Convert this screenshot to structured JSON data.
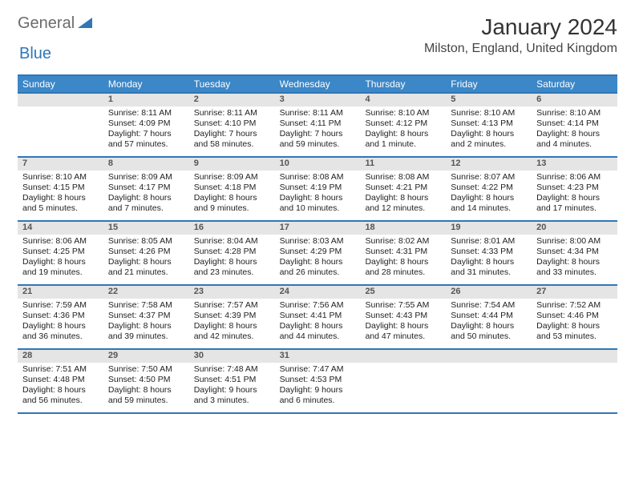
{
  "brand": {
    "word1": "General",
    "word2": "Blue",
    "text_color": "#6b6b6b",
    "accent_color": "#2f77b8"
  },
  "title": "January 2024",
  "location": "Milston, England, United Kingdom",
  "colors": {
    "header_bg": "#3b87c8",
    "header_border": "#2f77b8",
    "daynum_bg": "#e5e5e5",
    "daynum_color": "#555555",
    "body_text": "#222222",
    "page_bg": "#ffffff"
  },
  "day_headers": [
    "Sunday",
    "Monday",
    "Tuesday",
    "Wednesday",
    "Thursday",
    "Friday",
    "Saturday"
  ],
  "weeks": [
    [
      {
        "n": "",
        "sunrise": "",
        "sunset": "",
        "daylight": ""
      },
      {
        "n": "1",
        "sunrise": "Sunrise: 8:11 AM",
        "sunset": "Sunset: 4:09 PM",
        "daylight": "Daylight: 7 hours and 57 minutes."
      },
      {
        "n": "2",
        "sunrise": "Sunrise: 8:11 AM",
        "sunset": "Sunset: 4:10 PM",
        "daylight": "Daylight: 7 hours and 58 minutes."
      },
      {
        "n": "3",
        "sunrise": "Sunrise: 8:11 AM",
        "sunset": "Sunset: 4:11 PM",
        "daylight": "Daylight: 7 hours and 59 minutes."
      },
      {
        "n": "4",
        "sunrise": "Sunrise: 8:10 AM",
        "sunset": "Sunset: 4:12 PM",
        "daylight": "Daylight: 8 hours and 1 minute."
      },
      {
        "n": "5",
        "sunrise": "Sunrise: 8:10 AM",
        "sunset": "Sunset: 4:13 PM",
        "daylight": "Daylight: 8 hours and 2 minutes."
      },
      {
        "n": "6",
        "sunrise": "Sunrise: 8:10 AM",
        "sunset": "Sunset: 4:14 PM",
        "daylight": "Daylight: 8 hours and 4 minutes."
      }
    ],
    [
      {
        "n": "7",
        "sunrise": "Sunrise: 8:10 AM",
        "sunset": "Sunset: 4:15 PM",
        "daylight": "Daylight: 8 hours and 5 minutes."
      },
      {
        "n": "8",
        "sunrise": "Sunrise: 8:09 AM",
        "sunset": "Sunset: 4:17 PM",
        "daylight": "Daylight: 8 hours and 7 minutes."
      },
      {
        "n": "9",
        "sunrise": "Sunrise: 8:09 AM",
        "sunset": "Sunset: 4:18 PM",
        "daylight": "Daylight: 8 hours and 9 minutes."
      },
      {
        "n": "10",
        "sunrise": "Sunrise: 8:08 AM",
        "sunset": "Sunset: 4:19 PM",
        "daylight": "Daylight: 8 hours and 10 minutes."
      },
      {
        "n": "11",
        "sunrise": "Sunrise: 8:08 AM",
        "sunset": "Sunset: 4:21 PM",
        "daylight": "Daylight: 8 hours and 12 minutes."
      },
      {
        "n": "12",
        "sunrise": "Sunrise: 8:07 AM",
        "sunset": "Sunset: 4:22 PM",
        "daylight": "Daylight: 8 hours and 14 minutes."
      },
      {
        "n": "13",
        "sunrise": "Sunrise: 8:06 AM",
        "sunset": "Sunset: 4:23 PM",
        "daylight": "Daylight: 8 hours and 17 minutes."
      }
    ],
    [
      {
        "n": "14",
        "sunrise": "Sunrise: 8:06 AM",
        "sunset": "Sunset: 4:25 PM",
        "daylight": "Daylight: 8 hours and 19 minutes."
      },
      {
        "n": "15",
        "sunrise": "Sunrise: 8:05 AM",
        "sunset": "Sunset: 4:26 PM",
        "daylight": "Daylight: 8 hours and 21 minutes."
      },
      {
        "n": "16",
        "sunrise": "Sunrise: 8:04 AM",
        "sunset": "Sunset: 4:28 PM",
        "daylight": "Daylight: 8 hours and 23 minutes."
      },
      {
        "n": "17",
        "sunrise": "Sunrise: 8:03 AM",
        "sunset": "Sunset: 4:29 PM",
        "daylight": "Daylight: 8 hours and 26 minutes."
      },
      {
        "n": "18",
        "sunrise": "Sunrise: 8:02 AM",
        "sunset": "Sunset: 4:31 PM",
        "daylight": "Daylight: 8 hours and 28 minutes."
      },
      {
        "n": "19",
        "sunrise": "Sunrise: 8:01 AM",
        "sunset": "Sunset: 4:33 PM",
        "daylight": "Daylight: 8 hours and 31 minutes."
      },
      {
        "n": "20",
        "sunrise": "Sunrise: 8:00 AM",
        "sunset": "Sunset: 4:34 PM",
        "daylight": "Daylight: 8 hours and 33 minutes."
      }
    ],
    [
      {
        "n": "21",
        "sunrise": "Sunrise: 7:59 AM",
        "sunset": "Sunset: 4:36 PM",
        "daylight": "Daylight: 8 hours and 36 minutes."
      },
      {
        "n": "22",
        "sunrise": "Sunrise: 7:58 AM",
        "sunset": "Sunset: 4:37 PM",
        "daylight": "Daylight: 8 hours and 39 minutes."
      },
      {
        "n": "23",
        "sunrise": "Sunrise: 7:57 AM",
        "sunset": "Sunset: 4:39 PM",
        "daylight": "Daylight: 8 hours and 42 minutes."
      },
      {
        "n": "24",
        "sunrise": "Sunrise: 7:56 AM",
        "sunset": "Sunset: 4:41 PM",
        "daylight": "Daylight: 8 hours and 44 minutes."
      },
      {
        "n": "25",
        "sunrise": "Sunrise: 7:55 AM",
        "sunset": "Sunset: 4:43 PM",
        "daylight": "Daylight: 8 hours and 47 minutes."
      },
      {
        "n": "26",
        "sunrise": "Sunrise: 7:54 AM",
        "sunset": "Sunset: 4:44 PM",
        "daylight": "Daylight: 8 hours and 50 minutes."
      },
      {
        "n": "27",
        "sunrise": "Sunrise: 7:52 AM",
        "sunset": "Sunset: 4:46 PM",
        "daylight": "Daylight: 8 hours and 53 minutes."
      }
    ],
    [
      {
        "n": "28",
        "sunrise": "Sunrise: 7:51 AM",
        "sunset": "Sunset: 4:48 PM",
        "daylight": "Daylight: 8 hours and 56 minutes."
      },
      {
        "n": "29",
        "sunrise": "Sunrise: 7:50 AM",
        "sunset": "Sunset: 4:50 PM",
        "daylight": "Daylight: 8 hours and 59 minutes."
      },
      {
        "n": "30",
        "sunrise": "Sunrise: 7:48 AM",
        "sunset": "Sunset: 4:51 PM",
        "daylight": "Daylight: 9 hours and 3 minutes."
      },
      {
        "n": "31",
        "sunrise": "Sunrise: 7:47 AM",
        "sunset": "Sunset: 4:53 PM",
        "daylight": "Daylight: 9 hours and 6 minutes."
      },
      {
        "n": "",
        "sunrise": "",
        "sunset": "",
        "daylight": ""
      },
      {
        "n": "",
        "sunrise": "",
        "sunset": "",
        "daylight": ""
      },
      {
        "n": "",
        "sunrise": "",
        "sunset": "",
        "daylight": ""
      }
    ]
  ]
}
